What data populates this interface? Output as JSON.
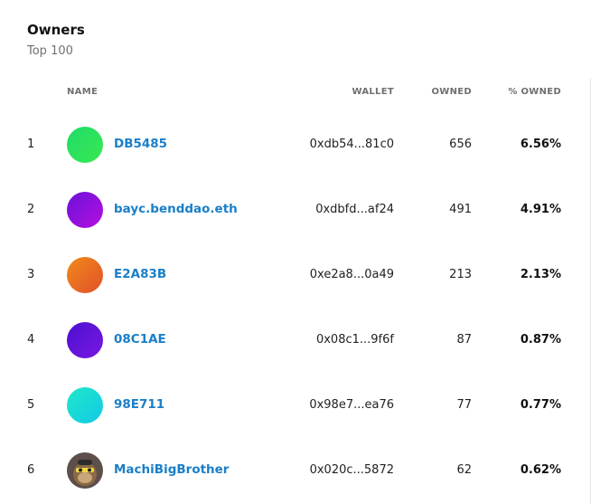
{
  "header": {
    "title": "Owners",
    "subtitle": "Top 100"
  },
  "columns": {
    "name": "NAME",
    "wallet": "WALLET",
    "owned": "OWNED",
    "pct_owned": "% OWNED"
  },
  "rows": [
    {
      "rank": "1",
      "name": "DB5485",
      "wallet": "0xdb54...81c0",
      "owned": "656",
      "pct": "6.56%",
      "avatar_colors": [
        "#1fdc6a",
        "#3ae850"
      ],
      "avatar_icon": "gradient-avatar-icon"
    },
    {
      "rank": "2",
      "name": "bayc.benddao.eth",
      "wallet": "0xdbfd...af24",
      "owned": "491",
      "pct": "4.91%",
      "avatar_colors": [
        "#6a12d8",
        "#b60ee0"
      ],
      "avatar_icon": "gradient-avatar-icon"
    },
    {
      "rank": "3",
      "name": "E2A83B",
      "wallet": "0xe2a8...0a49",
      "owned": "213",
      "pct": "2.13%",
      "avatar_colors": [
        "#f08a1a",
        "#e2502a"
      ],
      "avatar_icon": "gradient-avatar-icon"
    },
    {
      "rank": "4",
      "name": "08C1AE",
      "wallet": "0x08c1...9f6f",
      "owned": "87",
      "pct": "0.87%",
      "avatar_colors": [
        "#4a10d2",
        "#7a18e0"
      ],
      "avatar_icon": "gradient-avatar-icon"
    },
    {
      "rank": "5",
      "name": "98E711",
      "wallet": "0x98e7...ea76",
      "owned": "77",
      "pct": "0.77%",
      "avatar_colors": [
        "#1ee8c8",
        "#13c9e6"
      ],
      "avatar_icon": "gradient-avatar-icon"
    },
    {
      "rank": "6",
      "name": "MachiBigBrother",
      "wallet": "0x020c...5872",
      "owned": "62",
      "pct": "0.62%",
      "avatar_colors": [
        "#6b5a52",
        "#3c3230"
      ],
      "avatar_icon": "ape-avatar-icon"
    }
  ]
}
